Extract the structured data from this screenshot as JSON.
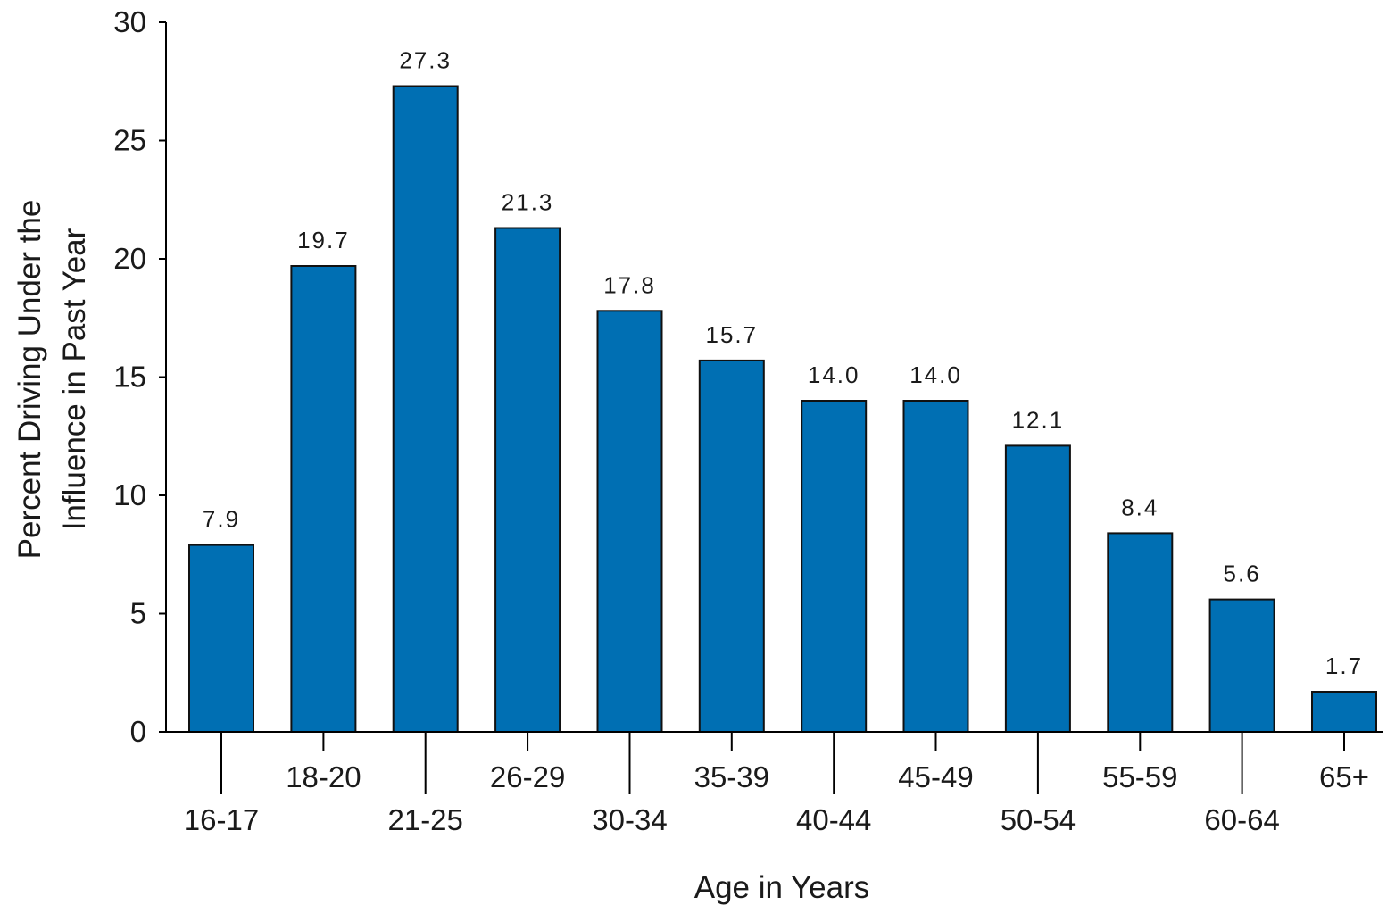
{
  "chart_data": {
    "type": "bar",
    "categories": [
      "16-17",
      "18-20",
      "21-25",
      "26-29",
      "30-34",
      "35-39",
      "40-44",
      "45-49",
      "50-54",
      "55-59",
      "60-64",
      "65+"
    ],
    "values": [
      7.9,
      19.7,
      27.3,
      21.3,
      17.8,
      15.7,
      14.0,
      14.0,
      12.1,
      8.4,
      5.6,
      1.7
    ],
    "value_labels": [
      "7.9",
      "19.7",
      "27.3",
      "21.3",
      "17.8",
      "15.7",
      "14.0",
      "14.0",
      "12.1",
      "8.4",
      "5.6",
      "1.7"
    ],
    "title": "",
    "xlabel": "Age in Years",
    "ylabel_lines": [
      "Percent Driving Under the",
      "Influence in Past Year"
    ],
    "ylim": [
      0,
      30
    ],
    "yticks": [
      0,
      5,
      10,
      15,
      20,
      25,
      30
    ],
    "grid": false,
    "legend": "none",
    "colors": {
      "bar": "#006fb3",
      "bar_edge": "#111111",
      "axis": "#000000"
    }
  }
}
